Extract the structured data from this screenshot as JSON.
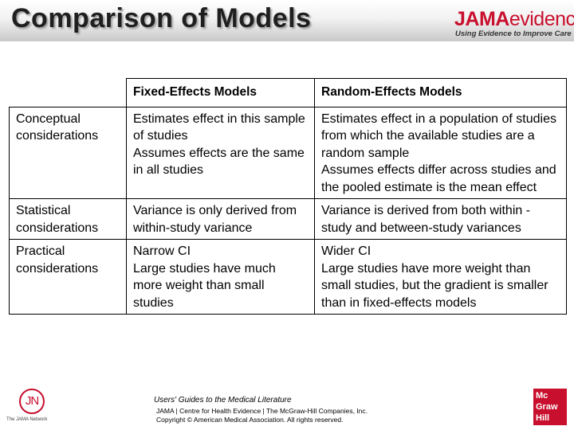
{
  "title": "Comparison of Models",
  "logo": {
    "brand_bold": "JAMA",
    "brand_light": "evidence",
    "tagline": "Using Evidence to Improve Care"
  },
  "table": {
    "headers": [
      "Fixed-Effects Models",
      "Random-Effects Models"
    ],
    "rows": [
      {
        "label": [
          "Conceptual",
          "considerations"
        ],
        "fixed": [
          "Estimates effect in this sample of studies",
          "Assumes effects are the same in all studies"
        ],
        "random": [
          "Estimates effect in a population of studies from which the available studies are a random sample",
          "Assumes effects differ across studies and the pooled estimate is the mean effect"
        ]
      },
      {
        "label": [
          "Statistical",
          "considerations"
        ],
        "fixed": [
          "Variance is only derived from within-study variance"
        ],
        "random": [
          "Variance is derived from both within -study and between-study variances"
        ]
      },
      {
        "label": [
          "Practical",
          "considerations"
        ],
        "fixed": [
          "Narrow CI",
          "Large studies have much more weight than small studies"
        ],
        "random": [
          "Wider CI",
          "Large studies have more weight than small studies, but the gradient is smaller than in fixed-effects models"
        ]
      }
    ]
  },
  "footer": {
    "citation": "Users' Guides to the Medical Literature",
    "credits_line1": "JAMA | Centre for Health Evidence | The McGraw-Hill Companies, Inc.",
    "credits_line2": "Copyright © American Medical Association. All rights reserved."
  },
  "jn_logo": {
    "mark": "JN",
    "caption": "The JAMA Network"
  },
  "mcgraw_logo": {
    "line1": "Mc",
    "line2": "Graw",
    "line3": "Hill"
  }
}
